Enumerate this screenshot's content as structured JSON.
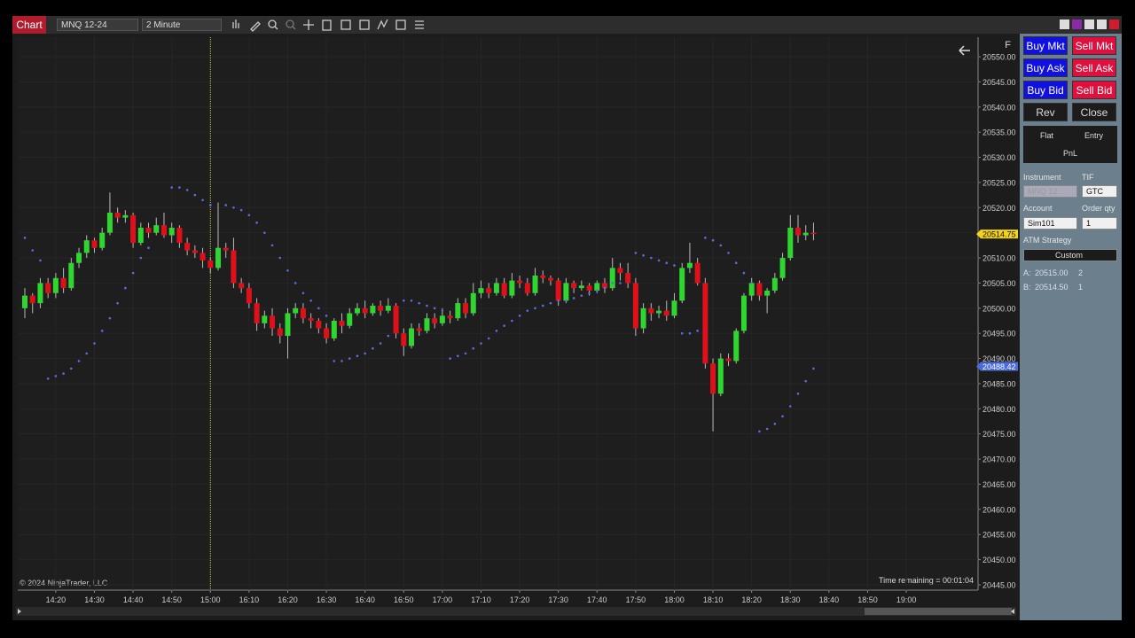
{
  "toolbar": {
    "tab": "Chart",
    "instrument": "MNQ 12-24",
    "interval": "2 Minute"
  },
  "chart_data": {
    "type": "candlestick",
    "corner_label": "F",
    "copyright": "© 2024 NinjaTrader, LLC",
    "time_remaining": "Time remaining = 00:01:04",
    "up_color": "#2fd62f",
    "down_color": "#e0101a",
    "grid": true,
    "categories": [
      null,
      null,
      null,
      null,
      "14:20",
      null,
      null,
      null,
      null,
      "14:30",
      null,
      null,
      null,
      null,
      "14:40",
      null,
      null,
      null,
      null,
      "14:50",
      null,
      null,
      null,
      null,
      "15:00",
      null,
      null,
      null,
      null,
      "16:10",
      null,
      null,
      null,
      null,
      "16:20",
      null,
      null,
      null,
      null,
      "16:30",
      null,
      null,
      null,
      null,
      "16:40",
      null,
      null,
      null,
      null,
      "16:50",
      null,
      null,
      null,
      null,
      "17:00",
      null,
      null,
      null,
      null,
      "17:10",
      null,
      null,
      null,
      null,
      "17:20",
      null,
      null,
      null,
      null,
      "17:30",
      null,
      null,
      null,
      null,
      "17:40",
      null,
      null,
      null,
      null,
      "17:50",
      null,
      null,
      null,
      null,
      "18:00",
      null,
      null,
      null,
      null,
      "18:10",
      null,
      null,
      null,
      null,
      "18:20",
      null,
      null,
      null,
      null,
      "18:30",
      null,
      null,
      null,
      null,
      "18:40",
      null,
      null,
      null,
      null,
      "18:50",
      null,
      null,
      null,
      null,
      "19:00"
    ],
    "open": [
      20500,
      20502.5,
      20501,
      20505,
      20503,
      20506,
      20504,
      20509,
      20511,
      20513.5,
      20512,
      20515,
      20519,
      20518,
      20518.5,
      20513,
      20516,
      20515,
      20516.5,
      20514.5,
      20516,
      20513,
      20511.5,
      20511,
      20509.5,
      20508,
      20512,
      20511.5,
      20505,
      20504,
      20501,
      20497,
      20498.5,
      20496,
      20494.5,
      20499,
      20500,
      20498,
      20497.5,
      20496,
      20494,
      20497.5,
      20496.5,
      20499,
      20500,
      20499,
      20500.5,
      20499.5,
      20500.5,
      20495,
      20492.5,
      20496,
      20495.5,
      20498,
      20497,
      20498.5,
      20498,
      20501,
      20499,
      20503,
      20504,
      20503,
      20505,
      20502.5,
      20505.5,
      20505,
      20503,
      20506.5,
      20506,
      20505.5,
      20501.5,
      20505,
      20504,
      20504.5,
      20503.5,
      20505,
      20504,
      20508,
      20507,
      20505,
      20496,
      20500,
      20499,
      20499.5,
      20498.5,
      20501.5,
      20508,
      20509,
      20505,
      20489,
      20483,
      20490,
      20489.5,
      20495.5,
      20502.5,
      20505,
      20502.5,
      20503.5,
      20506,
      20510,
      20516,
      20514.5,
      20515,
      null,
      null,
      null,
      null,
      null,
      null,
      null,
      null,
      null,
      null,
      null,
      null
    ],
    "high": [
      20504,
      20503,
      20506,
      20506,
      20507,
      20508,
      20510,
      20512,
      20514.5,
      20514,
      20516,
      20523,
      20520,
      20519.5,
      20519,
      20517,
      20517,
      20518,
      20519,
      20517,
      20516.5,
      20514,
      20512.5,
      20512,
      20510,
      20521,
      20513,
      20514,
      20506,
      20505,
      20502,
      20499.5,
      20500,
      20497,
      20500,
      20501,
      20501,
      20499,
      20498,
      20497,
      20498,
      20499,
      20500,
      20501,
      20501.5,
      20501,
      20501.5,
      20502,
      20501,
      20496,
      20497,
      20497,
      20499,
      20499,
      20500,
      20499.5,
      20502,
      20502,
      20505,
      20505.5,
      20505,
      20506,
      20506,
      20507,
      20506.5,
      20506,
      20508,
      20507.5,
      20506.5,
      20506,
      20506,
      20505.5,
      20505.5,
      20505,
      20505.5,
      20506,
      20510,
      20509,
      20509,
      20506,
      20501,
      20501,
      20500.5,
      20501.5,
      20503,
      20509,
      20513,
      20510,
      20506,
      20490,
      20491,
      20491,
      20496,
      20503,
      20506,
      20505.5,
      20504,
      20507,
      20511,
      20518.5,
      20518.5,
      20516.5,
      20517,
      null,
      null,
      null,
      null,
      null,
      null,
      null,
      null,
      null,
      null,
      null,
      null
    ],
    "low": [
      20498,
      20499,
      20500,
      20502,
      20502,
      20503,
      20503.5,
      20508,
      20510,
      20511,
      20511.5,
      20514.5,
      20517,
      20517,
      20512,
      20512.5,
      20514,
      20514.5,
      20514,
      20513,
      20512,
      20510.5,
      20510,
      20508,
      20507,
      20507.5,
      20510,
      20504,
      20503,
      20500,
      20495.5,
      20496,
      20494.5,
      20493,
      20490,
      20498,
      20497,
      20496,
      20495,
      20493,
      20493.5,
      20495,
      20496,
      20498.5,
      20498,
      20498.5,
      20498.5,
      20499,
      20494,
      20490.5,
      20492,
      20494.5,
      20495,
      20496,
      20496.5,
      20497,
      20497.5,
      20498,
      20498.5,
      20502,
      20502,
      20502.5,
      20502,
      20502,
      20504,
      20502.5,
      20502.5,
      20505,
      20504.5,
      20500.5,
      20501,
      20503,
      20503.5,
      20502.5,
      20503,
      20503,
      20503.5,
      20505.5,
      20504,
      20494.5,
      20495,
      20497.5,
      20498,
      20497.5,
      20498,
      20501,
      20507,
      20504.5,
      20488,
      20475.5,
      20482.5,
      20488.5,
      20489,
      20495,
      20501.5,
      20501.5,
      20499,
      20503,
      20505.5,
      20509.5,
      20513,
      20513.5,
      20513.5,
      null,
      null,
      null,
      null,
      null,
      null,
      null,
      null,
      null,
      null,
      null,
      null
    ],
    "close": [
      20502.5,
      20501,
      20505,
      20503,
      20506,
      20504,
      20509,
      20511,
      20513.5,
      20512,
      20515,
      20519,
      20518,
      20518.5,
      20513,
      20516,
      20515,
      20516.5,
      20514.5,
      20516,
      20513,
      20511.5,
      20511,
      20509.5,
      20508,
      20512,
      20511.5,
      20505,
      20504,
      20501,
      20497,
      20498.5,
      20496,
      20494.5,
      20499,
      20500,
      20498,
      20497.5,
      20496,
      20494,
      20497.5,
      20496.5,
      20499,
      20500,
      20499,
      20500.5,
      20499.5,
      20500.5,
      20495,
      20492.5,
      20496,
      20495.5,
      20498,
      20497,
      20498.5,
      20498,
      20501,
      20499,
      20503,
      20504,
      20503,
      20505,
      20502.5,
      20505.5,
      20505,
      20503,
      20506.5,
      20506,
      20505.5,
      20501.5,
      20505,
      20504,
      20504.5,
      20503.5,
      20505,
      20504,
      20508,
      20507,
      20505,
      20496,
      20500,
      20499,
      20499.5,
      20498.5,
      20501.5,
      20508,
      20509,
      20505,
      20489,
      20483,
      20490,
      20489.5,
      20495.5,
      20502.5,
      20505,
      20502.5,
      20503.5,
      20506,
      20510,
      20516,
      20514.5,
      20515,
      20514.75,
      null,
      null,
      null,
      null,
      null,
      null,
      null,
      null,
      null,
      null,
      null,
      null
    ],
    "sar": {
      "color": "#5b6ee0",
      "values": [
        20514,
        20511.5,
        20509.5,
        20486,
        20486.5,
        20487,
        20488,
        20489.5,
        20491,
        20493,
        20495.5,
        20498,
        20501,
        20504,
        20507,
        20510,
        20512,
        null,
        null,
        20524,
        20524,
        20523.5,
        20522.5,
        20521.5,
        20520.5,
        null,
        20520.5,
        20520,
        20519.5,
        20518.5,
        20517,
        20515,
        20512.5,
        20510,
        20507.5,
        20505,
        20503,
        20501.5,
        20500,
        20498.5,
        20489.5,
        20489.5,
        20490,
        20490.5,
        20491,
        20492,
        20493,
        20494.5,
        null,
        20501.5,
        20501.5,
        20501,
        20500.5,
        20500,
        20499.5,
        20490,
        20490.5,
        20491,
        20492,
        20493,
        20494,
        20495.5,
        20496.5,
        20497.5,
        20498.5,
        20499.5,
        20500,
        20500.5,
        20501,
        20501.5,
        20501.5,
        20502,
        20502.5,
        20503,
        20503.5,
        20504,
        20505,
        20505,
        null,
        20511,
        20510.5,
        20510,
        20509.5,
        20509,
        20508.5,
        20495,
        20495,
        20495.5,
        20514,
        20513.5,
        20512.5,
        20511,
        20509,
        20507,
        20505,
        20475.5,
        20476,
        20477,
        20478.5,
        20480.5,
        20483,
        20485.5,
        20488,
        null,
        null,
        null,
        null,
        null,
        null,
        null,
        null,
        null,
        null,
        null,
        null
      ]
    },
    "ylim": [
      20443.94,
      20553.88
    ],
    "yticks": [
      {
        "value": 20445,
        "label": "20445.00"
      },
      {
        "value": 20450,
        "label": "20450.00"
      },
      {
        "value": 20455,
        "label": "20455.00"
      },
      {
        "value": 20460,
        "label": "20460.00"
      },
      {
        "value": 20465,
        "label": "20465.00"
      },
      {
        "value": 20470,
        "label": "20470.00"
      },
      {
        "value": 20475,
        "label": "20475.00"
      },
      {
        "value": 20480,
        "label": "20480.00"
      },
      {
        "value": 20485,
        "label": "20485.00"
      },
      {
        "value": 20490,
        "label": "20490.00"
      },
      {
        "value": 20495,
        "label": "20495.00"
      },
      {
        "value": 20500,
        "label": "20500.00"
      },
      {
        "value": 20505,
        "label": "20505.00"
      },
      {
        "value": 20510,
        "label": "20510.00"
      },
      {
        "value": 20515,
        "label": "20515.00"
      },
      {
        "value": 20520,
        "label": "20520.00"
      },
      {
        "value": 20525,
        "label": "20525.00"
      },
      {
        "value": 20530,
        "label": "20530.00"
      },
      {
        "value": 20535,
        "label": "20535.00"
      },
      {
        "value": 20540,
        "label": "20540.00"
      },
      {
        "value": 20545,
        "label": "20545.00"
      },
      {
        "value": 20550,
        "label": "20550.00"
      }
    ],
    "price_markers": [
      {
        "value": 20514.75,
        "label": "20514.75",
        "color": "#f2d21a"
      },
      {
        "value": 20488.42,
        "label": "20488.42",
        "color": "#4a6bd8"
      }
    ]
  },
  "order_panel": {
    "buy_mkt": "Buy Mkt",
    "sell_mkt": "Sell Mkt",
    "buy_ask": "Buy Ask",
    "sell_ask": "Sell Ask",
    "buy_bid": "Buy Bid",
    "sell_bid": "Sell Bid",
    "rev": "Rev",
    "close": "Close",
    "flat": "Flat",
    "entry": "Entry",
    "pnl": "PnL",
    "instrument_label": "Instrument",
    "tif_label": "TIF",
    "instrument": "MNQ 12...",
    "tif": "GTC",
    "account_label": "Account",
    "qty_label": "Order qty",
    "account": "Sim101",
    "qty": "1",
    "atm_label": "ATM Strategy",
    "atm": "Custom",
    "ask_label": "A:",
    "ask_price": "20515.00",
    "ask_size": "2",
    "bid_label": "B:",
    "bid_price": "20514.50",
    "bid_size": "1"
  }
}
